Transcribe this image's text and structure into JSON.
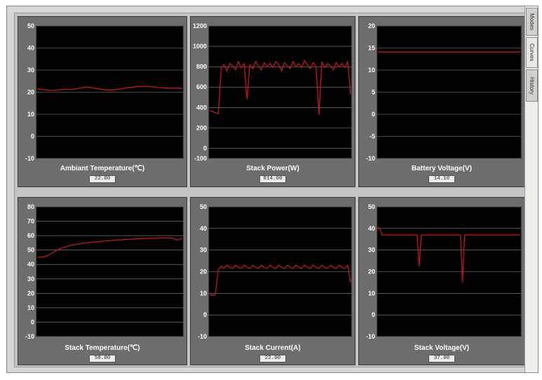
{
  "tabs": [
    {
      "label": "Modes"
    },
    {
      "label": "Curves"
    },
    {
      "label": "History"
    }
  ],
  "colors": {
    "plot_bg": "#000000",
    "grid": "#8c8c8c",
    "trace": "#c4171b",
    "axis_text": "#ffffff",
    "panel": "#6d6d6d"
  },
  "panels": [
    {
      "title": "Ambiant Temperature(℃)",
      "value": "22.00"
    },
    {
      "title": "Stack Power(W)",
      "value": "814.00"
    },
    {
      "title": "Battery Voltage(V)",
      "value": "14.10"
    },
    {
      "title": "Stack Temperature(℃)",
      "value": "58.00"
    },
    {
      "title": "Stack Current(A)",
      "value": "22.00"
    },
    {
      "title": "Stack Voltage(V)",
      "value": "37.00"
    }
  ],
  "chart_data": [
    {
      "type": "line",
      "title": "Ambiant Temperature(℃)",
      "ylim": [
        -10,
        50
      ],
      "yticks": [
        -10,
        0,
        10,
        20,
        30,
        40,
        50
      ],
      "grid": true,
      "series": [
        {
          "values": [
            21.5,
            21.2,
            21.0,
            20.8,
            21.0,
            21.2,
            21.3,
            21.2,
            21.6,
            22.0,
            22.4,
            22.0,
            21.6,
            21.2,
            21.0,
            21.0,
            21.2,
            21.6,
            22.0,
            22.3,
            22.5,
            22.6,
            22.6,
            22.4,
            22.2,
            22.0,
            21.8,
            21.8,
            21.8,
            21.8
          ]
        }
      ]
    },
    {
      "type": "line",
      "title": "Stack Power(W)",
      "ylim": [
        -100,
        1200
      ],
      "yticks": [
        -100,
        0,
        200,
        400,
        600,
        800,
        1000,
        1200
      ],
      "grid": true,
      "series": [
        {
          "values": [
            370,
            360,
            350,
            340,
            780,
            820,
            760,
            830,
            810,
            770,
            850,
            790,
            830,
            480,
            820,
            780,
            850,
            810,
            770,
            840,
            800,
            830,
            790,
            850,
            820,
            760,
            840,
            810,
            780,
            850,
            800,
            830,
            790,
            860,
            820,
            780,
            840,
            800,
            330,
            850,
            790,
            830,
            810,
            770,
            840,
            800,
            830,
            790,
            850,
            530
          ]
        }
      ]
    },
    {
      "type": "line",
      "title": "Battery Voltage(V)",
      "ylim": [
        -10,
        20
      ],
      "yticks": [
        -10,
        -5,
        0,
        5,
        10,
        15,
        20
      ],
      "grid": true,
      "series": [
        {
          "values": [
            14.1,
            14.1,
            14.1,
            14.1,
            14.1,
            14.1,
            14.1,
            14.1,
            14.1,
            14.1
          ]
        }
      ]
    },
    {
      "type": "line",
      "title": "Stack Temperature(℃)",
      "ylim": [
        -10,
        80
      ],
      "yticks": [
        -10,
        0,
        10,
        20,
        30,
        40,
        50,
        60,
        70,
        80
      ],
      "grid": true,
      "series": [
        {
          "values": [
            45,
            45,
            46,
            48,
            50,
            51.5,
            52.5,
            53.5,
            54,
            54.6,
            55.1,
            55.5,
            55.8,
            56.1,
            56.4,
            56.7,
            57,
            57.2,
            57.4,
            57.6,
            57.8,
            58,
            58.1,
            58.2,
            58.3,
            58.3,
            58.4,
            58.4,
            57,
            58
          ]
        }
      ]
    },
    {
      "type": "line",
      "title": "Stack Current(A)",
      "ylim": [
        -10,
        50
      ],
      "yticks": [
        -10,
        0,
        10,
        20,
        30,
        40,
        50
      ],
      "grid": true,
      "series": [
        {
          "values": [
            9.5,
            9,
            9.5,
            21,
            22.5,
            21.5,
            23,
            22,
            21.5,
            23,
            22,
            21.5,
            23,
            22,
            21.5,
            23,
            22,
            21.5,
            23,
            22,
            21.5,
            23,
            22,
            21.5,
            23,
            22,
            21.5,
            23,
            22,
            21.5,
            23,
            22,
            21.5,
            23,
            22,
            21.5,
            23,
            22,
            21.5,
            23,
            22,
            21.5,
            23,
            22,
            21.5,
            23,
            22,
            21.5,
            23,
            15
          ]
        }
      ]
    },
    {
      "type": "line",
      "title": "Stack Voltage(V)",
      "ylim": [
        -10,
        50
      ],
      "yticks": [
        -10,
        0,
        10,
        20,
        30,
        40,
        50
      ],
      "grid": true,
      "series": [
        {
          "values": [
            40.5,
            40,
            37,
            37,
            37,
            37,
            37,
            37,
            37,
            37,
            37,
            37,
            37,
            37,
            37,
            37,
            37,
            37,
            37,
            37,
            22.5,
            37,
            37,
            37,
            37,
            37,
            37,
            37,
            37,
            37,
            37,
            37,
            37,
            37,
            37,
            37,
            37,
            37,
            37,
            37,
            37,
            15,
            37,
            37,
            37,
            37,
            37,
            37,
            37,
            37,
            37,
            37,
            37,
            37,
            37,
            37,
            37,
            37,
            37,
            37,
            37,
            37,
            37,
            37,
            37,
            37,
            37,
            37,
            37,
            37
          ]
        }
      ]
    }
  ]
}
